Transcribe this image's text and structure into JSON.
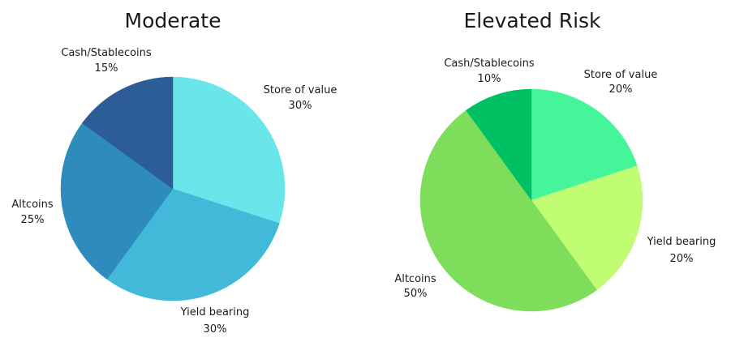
{
  "chart_data": [
    {
      "type": "pie",
      "title": "Moderate",
      "slices": [
        {
          "label": "Store of value",
          "value": 30,
          "value_label": "30%",
          "color": "#6ae6ea"
        },
        {
          "label": "Yield bearing",
          "value": 30,
          "value_label": "30%",
          "color": "#42b9d8"
        },
        {
          "label": "Altcoins",
          "value": 25,
          "value_label": "25%",
          "color": "#2e8cbc"
        },
        {
          "label": "Cash/Stablecoins",
          "value": 15,
          "value_label": "15%",
          "color": "#2c5d96"
        }
      ]
    },
    {
      "type": "pie",
      "title": "Elevated Risk",
      "slices": [
        {
          "label": "Store of value",
          "value": 20,
          "value_label": "20%",
          "color": "#44f599"
        },
        {
          "label": "Yield bearing",
          "value": 20,
          "value_label": "20%",
          "color": "#c1fd72"
        },
        {
          "label": "Altcoins",
          "value": 50,
          "value_label": "50%",
          "color": "#7fdd5c"
        },
        {
          "label": "Cash/Stablecoins",
          "value": 10,
          "value_label": "10%",
          "color": "#00c064"
        }
      ]
    }
  ]
}
